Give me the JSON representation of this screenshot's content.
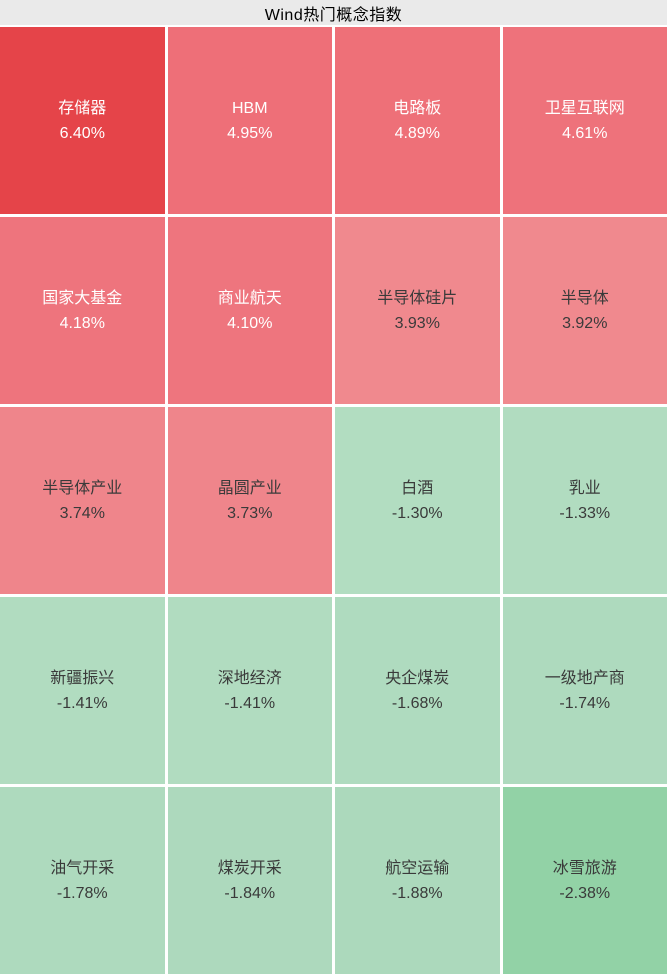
{
  "header": {
    "title": "Wind热门概念指数"
  },
  "colors": {
    "titlebar_bg": "#eaeaea",
    "title_text": "#000000",
    "gap": "#ffffff",
    "text_light": "#ffffff",
    "text_dark": "#3a3a3a"
  },
  "chart_data": {
    "type": "heatmap",
    "title": "Wind热门概念指数",
    "layout": "grid 5 rows x 4 columns, reading order left-to-right top-to-bottom, tile color encodes daily % change (red = up, green = down)",
    "legend_position": "none",
    "tiles": [
      {
        "name": "存储器",
        "change_label": "6.40%",
        "value": 6.4,
        "bg": "#e54449",
        "fg": "#ffffff"
      },
      {
        "name": "HBM",
        "change_label": "4.95%",
        "value": 4.95,
        "bg": "#ee6f78",
        "fg": "#ffffff"
      },
      {
        "name": "电路板",
        "change_label": "4.89%",
        "value": 4.89,
        "bg": "#ee7078",
        "fg": "#ffffff"
      },
      {
        "name": "卫星互联网",
        "change_label": "4.61%",
        "value": 4.61,
        "bg": "#ee727b",
        "fg": "#ffffff"
      },
      {
        "name": "国家大基金",
        "change_label": "4.18%",
        "value": 4.18,
        "bg": "#ee747d",
        "fg": "#ffffff"
      },
      {
        "name": "商业航天",
        "change_label": "4.10%",
        "value": 4.1,
        "bg": "#ee757e",
        "fg": "#ffffff"
      },
      {
        "name": "半导体硅片",
        "change_label": "3.93%",
        "value": 3.93,
        "bg": "#f0898e",
        "fg": "#3a3a3a"
      },
      {
        "name": "半导体",
        "change_label": "3.92%",
        "value": 3.92,
        "bg": "#f0898e",
        "fg": "#3a3a3a"
      },
      {
        "name": "半导体产业",
        "change_label": "3.74%",
        "value": 3.74,
        "bg": "#ef858b",
        "fg": "#3a3a3a"
      },
      {
        "name": "晶圆产业",
        "change_label": "3.73%",
        "value": 3.73,
        "bg": "#ef858b",
        "fg": "#3a3a3a"
      },
      {
        "name": "白酒",
        "change_label": "-1.30%",
        "value": -1.3,
        "bg": "#b2ddc1",
        "fg": "#3a3a3a"
      },
      {
        "name": "乳业",
        "change_label": "-1.33%",
        "value": -1.33,
        "bg": "#b1dcc0",
        "fg": "#3a3a3a"
      },
      {
        "name": "新疆振兴",
        "change_label": "-1.41%",
        "value": -1.41,
        "bg": "#b1dcc0",
        "fg": "#3a3a3a"
      },
      {
        "name": "深地经济",
        "change_label": "-1.41%",
        "value": -1.41,
        "bg": "#b1dcc0",
        "fg": "#3a3a3a"
      },
      {
        "name": "央企煤炭",
        "change_label": "-1.68%",
        "value": -1.68,
        "bg": "#afdbbf",
        "fg": "#3a3a3a"
      },
      {
        "name": "一级地产商",
        "change_label": "-1.74%",
        "value": -1.74,
        "bg": "#aedabe",
        "fg": "#3a3a3a"
      },
      {
        "name": "油气开采",
        "change_label": "-1.78%",
        "value": -1.78,
        "bg": "#aedabe",
        "fg": "#3a3a3a"
      },
      {
        "name": "煤炭开采",
        "change_label": "-1.84%",
        "value": -1.84,
        "bg": "#add9bd",
        "fg": "#3a3a3a"
      },
      {
        "name": "航空运输",
        "change_label": "-1.88%",
        "value": -1.88,
        "bg": "#acd9bc",
        "fg": "#3a3a3a"
      },
      {
        "name": "冰雪旅游",
        "change_label": "-2.38%",
        "value": -2.38,
        "bg": "#92d2a6",
        "fg": "#3a3a3a"
      }
    ]
  }
}
